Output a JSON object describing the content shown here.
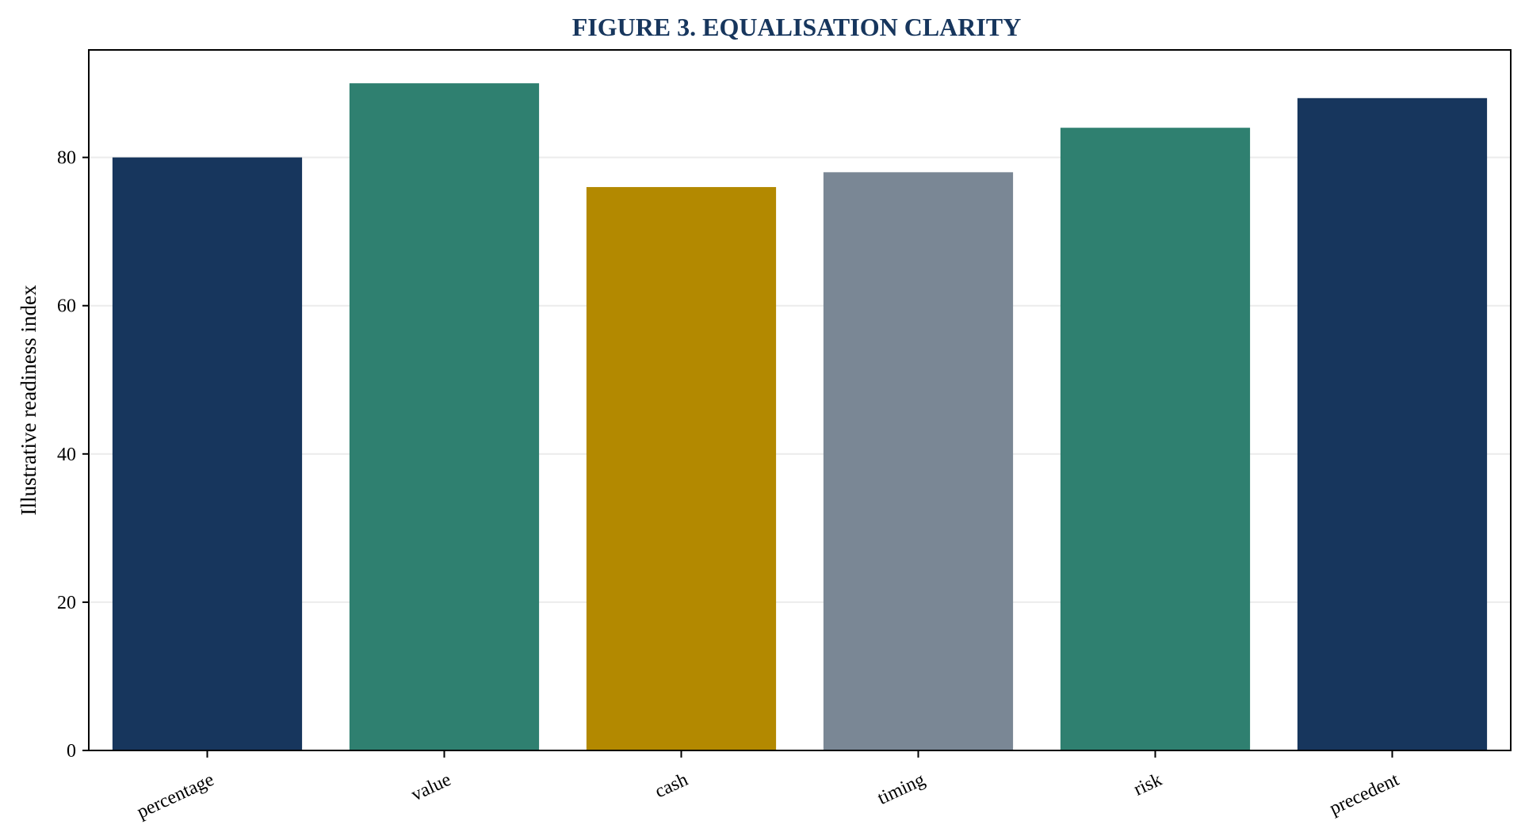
{
  "chart_data": {
    "type": "bar",
    "title": "FIGURE 3. EQUALISATION CLARITY",
    "xlabel": "",
    "ylabel": "Illustrative readiness index",
    "categories": [
      "percentage",
      "value",
      "cash",
      "timing",
      "risk",
      "precedent"
    ],
    "values": [
      80,
      90,
      76,
      78,
      84,
      88
    ],
    "ylim": [
      0,
      94.5
    ],
    "yticks": [
      0,
      20,
      40,
      60,
      80
    ],
    "grid": "y",
    "legend": "none",
    "bar_colors": [
      "#17365d",
      "#2f8070",
      "#b38900",
      "#7a8795",
      "#2f8070",
      "#17365d"
    ]
  },
  "colors": {
    "title": "#17365d",
    "gridline": "#ececec",
    "axes": "#000000"
  }
}
